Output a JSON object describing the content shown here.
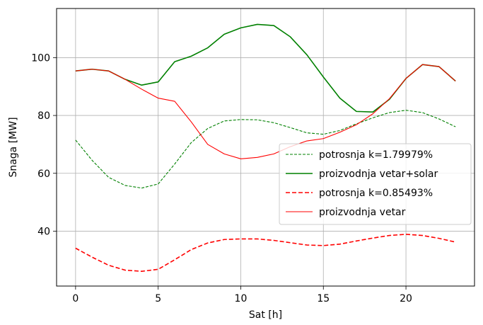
{
  "chart_data": {
    "type": "line",
    "xlabel": "Sat [h]",
    "ylabel": "Snaga [MW]",
    "xlim": [
      -1.15,
      24.15
    ],
    "ylim": [
      21.0,
      117.0
    ],
    "xticks": [
      0,
      5,
      10,
      15,
      20
    ],
    "yticks": [
      40,
      60,
      80,
      100
    ],
    "grid": true,
    "legend_position": "center-right",
    "x": [
      0,
      1,
      2,
      3,
      4,
      5,
      6,
      7,
      8,
      9,
      10,
      11,
      12,
      13,
      14,
      15,
      16,
      17,
      18,
      19,
      20,
      21,
      22,
      23
    ],
    "series": [
      {
        "name": "potrosnja k=1.79979%",
        "color": "#008000",
        "style": "dashed",
        "width": "thin",
        "values": [
          71.5,
          64.5,
          58.6,
          55.8,
          54.9,
          56.3,
          63.2,
          70.6,
          75.5,
          78.1,
          78.6,
          78.5,
          77.5,
          75.8,
          74.0,
          73.5,
          74.8,
          77.1,
          79.2,
          81.0,
          81.8,
          81.0,
          78.8,
          76.1
        ]
      },
      {
        "name": "proizvodnja vetar+solar",
        "color": "#008000",
        "style": "solid",
        "width": "thick",
        "values": [
          95.4,
          96.0,
          95.4,
          92.5,
          90.5,
          91.6,
          98.6,
          100.5,
          103.4,
          108.1,
          110.3,
          111.5,
          111.1,
          107.2,
          101.0,
          93.3,
          86.0,
          81.4,
          81.2,
          85.6,
          92.8,
          97.6,
          96.9,
          91.9
        ]
      },
      {
        "name": "potrosnja k=0.85493%",
        "color": "#ff0000",
        "style": "dashed",
        "width": "thick",
        "values": [
          34.1,
          31.0,
          28.2,
          26.5,
          26.1,
          26.8,
          30.1,
          33.6,
          35.9,
          37.1,
          37.3,
          37.3,
          36.8,
          36.0,
          35.2,
          35.0,
          35.5,
          36.6,
          37.6,
          38.5,
          38.9,
          38.5,
          37.5,
          36.2
        ]
      },
      {
        "name": "proizvodnja vetar",
        "color": "#ff0000",
        "style": "solid",
        "width": "thin",
        "values": [
          95.4,
          96.0,
          95.4,
          92.5,
          89.1,
          86.0,
          84.9,
          77.8,
          70.0,
          66.7,
          65.0,
          65.5,
          66.7,
          69.2,
          71.2,
          72.0,
          74.2,
          76.8,
          80.6,
          85.8,
          92.8,
          97.6,
          96.9,
          91.9
        ]
      }
    ]
  }
}
